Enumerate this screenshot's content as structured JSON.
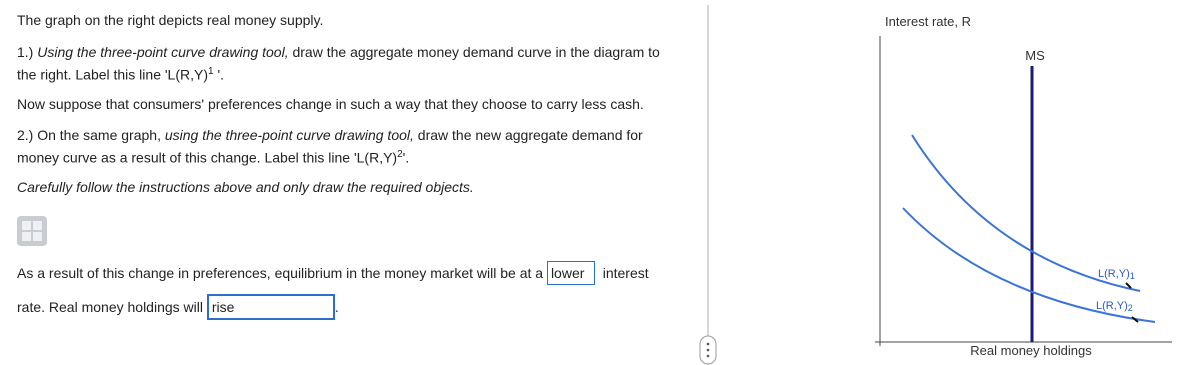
{
  "prompt": {
    "intro": "The graph on the right depicts real money supply.",
    "step1": {
      "prefix": "1.)",
      "italic": "Using the three-point curve drawing tool,",
      "text": "draw the aggregate money demand curve in the diagram to the right. Label this line 'L(R,Y)",
      "sup": "1",
      "suffix": "'."
    },
    "change": "Now suppose that consumers' preferences change in such a way that they choose to carry less cash.",
    "step2": {
      "prefix": "2.) On the same graph,",
      "italic": "using the three-point curve drawing tool,",
      "text": "draw the new aggregate demand for money curve as a result of this change. Label this line 'L(R,Y)",
      "sup": "2",
      "suffix": "'."
    },
    "note": "Carefully follow the instructions above and only draw the required objects."
  },
  "answers": {
    "text1": "As a result of this change in preferences, equilibrium in the money market will be at a",
    "box1": "lower",
    "text2": "interest",
    "text3": "rate. Real money holdings will",
    "box2": "rise",
    "text4": "."
  },
  "graph": {
    "y_axis_label": "Interest rate, R",
    "x_axis_label": "Real money holdings",
    "ms_label": "MS",
    "curve1_label": {
      "text": "L(R,Y)",
      "sub": "1"
    },
    "curve2_label": {
      "text": "L(R,Y)",
      "sub": "2"
    }
  }
}
